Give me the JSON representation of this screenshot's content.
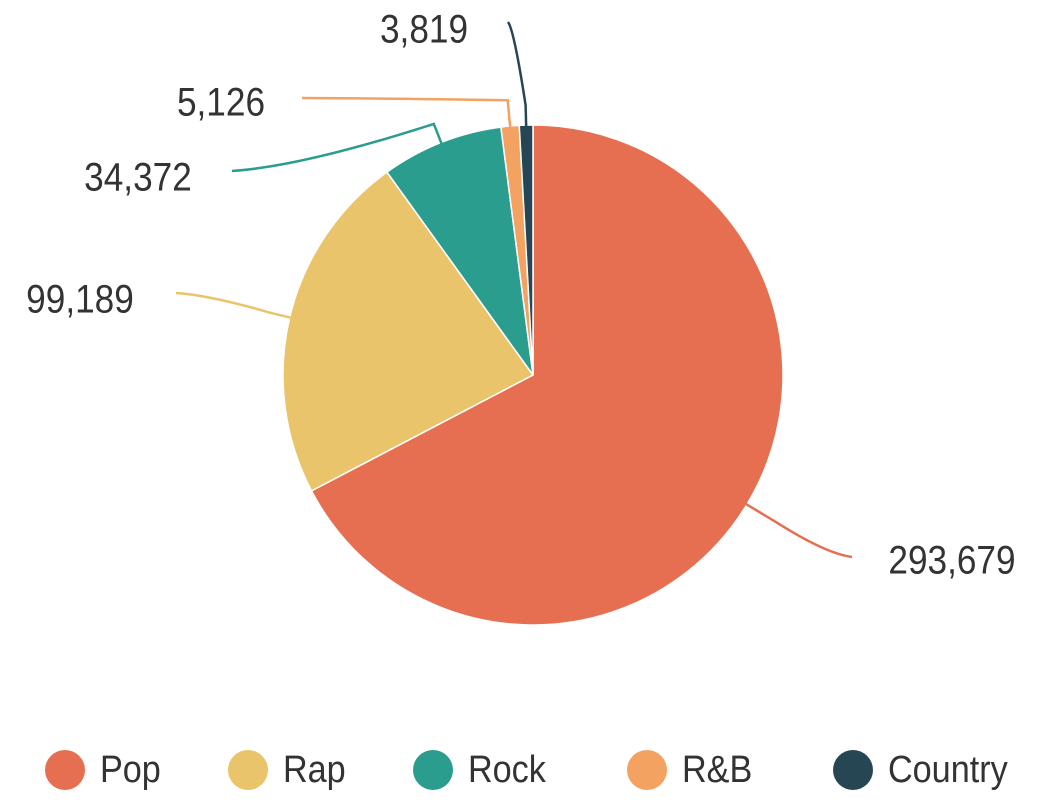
{
  "chart_data": {
    "type": "pie",
    "categories": [
      "Pop",
      "Rap",
      "Rock",
      "R&B",
      "Country"
    ],
    "values": [
      293679,
      99189,
      34372,
      5126,
      3819
    ],
    "labels": [
      "293,679",
      "99,189",
      "34,372",
      "5,126",
      "3,819"
    ],
    "colors": [
      "#E76F51",
      "#E9C46A",
      "#2A9D8F",
      "#F4A261",
      "#264653"
    ],
    "legend_position": "bottom",
    "start_angle": "12 o'clock",
    "direction": "clockwise"
  }
}
